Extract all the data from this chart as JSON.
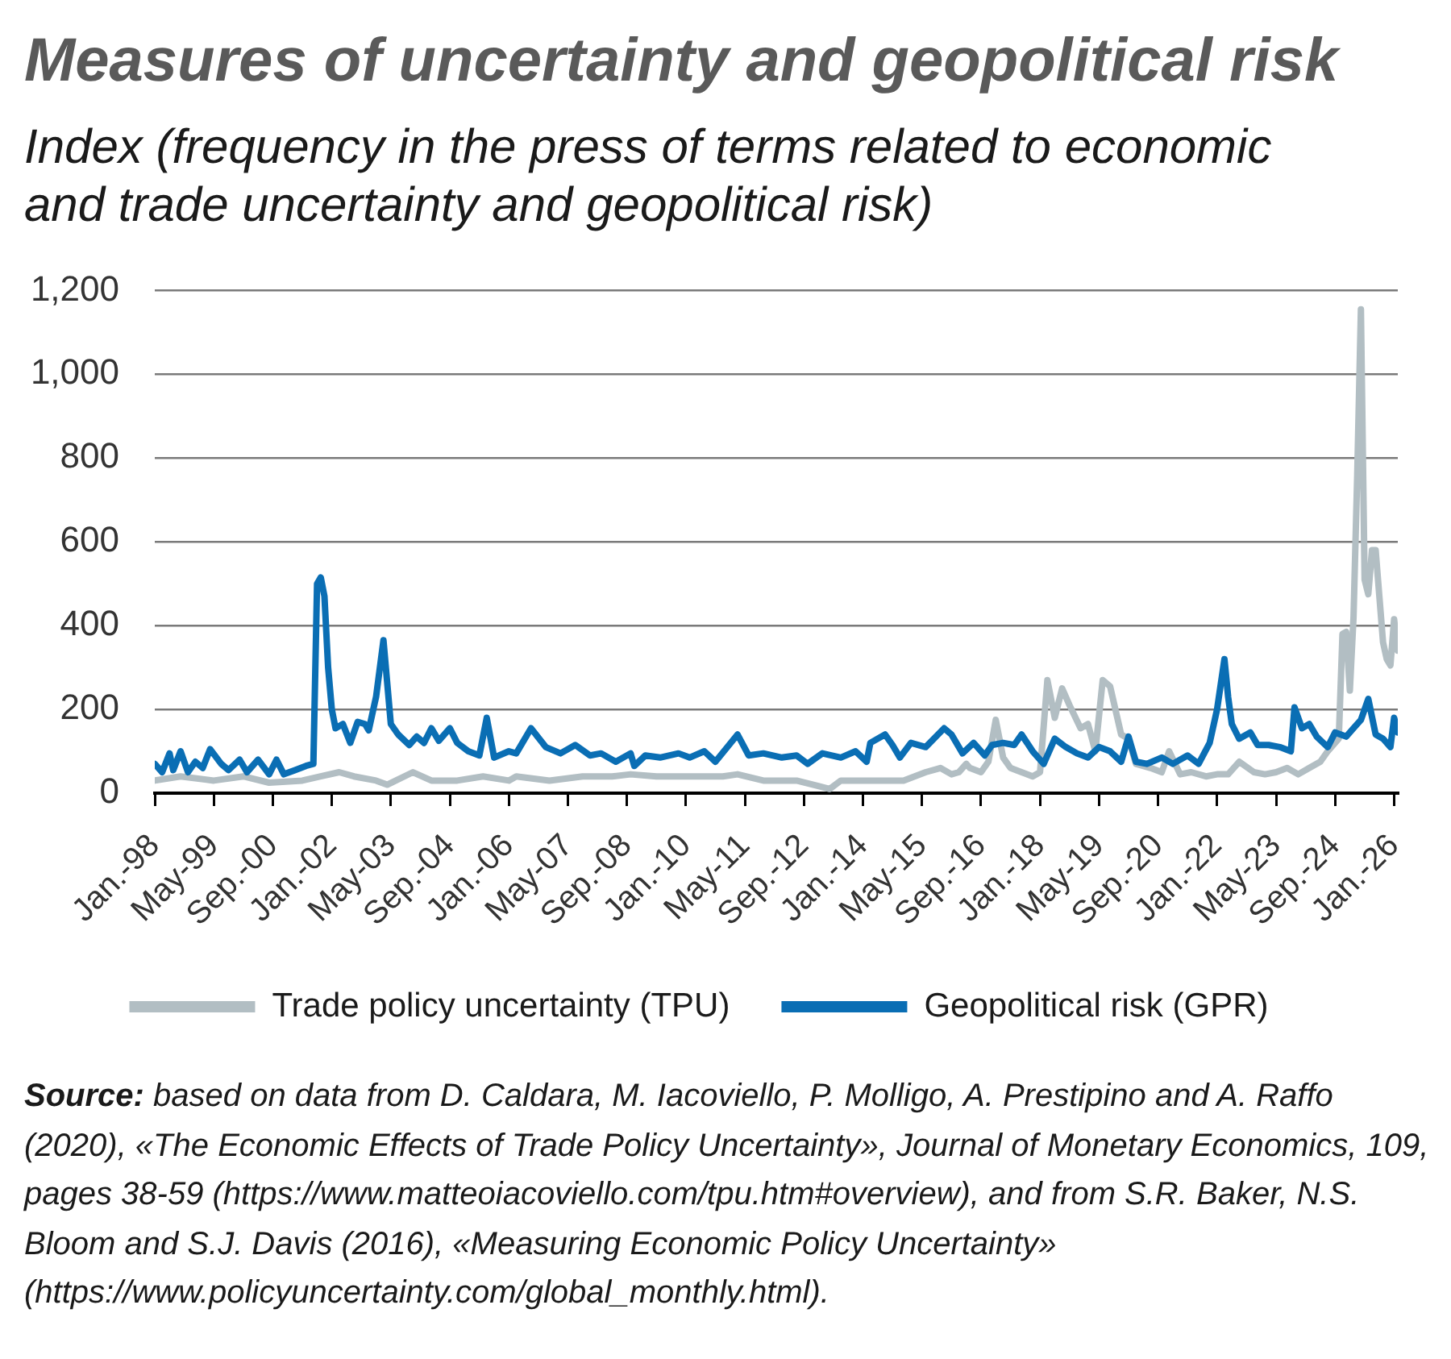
{
  "chart_data": {
    "type": "line",
    "title": "Measures of uncertainty and geopolitical risk",
    "subtitle": "Index (frequency in the press of terms related to economic and trade uncertainty and geopolitical risk)",
    "annotations": [
      "Source: based on data from D. Caldara, M. Iacoviello, P. Molligo, A. Prestipino and A. Raffo (2020), «The Economic Effects of Trade Policy Uncertainty», Journal of Monetary Economics, 109, pages 38-59 (https://www.matteoiacoviello.com/tpu.htm#overview), and from S.R. Baker, N.S. Bloom and S.J. Davis (2016), «Measuring Economic Policy Uncertainty» (https://www.policyuncertainty.com/global_monthly.html)."
    ],
    "xlim": [
      "1998-01",
      "2026-02"
    ],
    "xticks": [
      {
        "value": "1998-01",
        "label": "Jan.-98"
      },
      {
        "value": "1999-05",
        "label": "May-99"
      },
      {
        "value": "2000-09",
        "label": "Sep.-00"
      },
      {
        "value": "2002-01",
        "label": "Jan.-02"
      },
      {
        "value": "2003-05",
        "label": "May-03"
      },
      {
        "value": "2004-09",
        "label": "Sep.-04"
      },
      {
        "value": "2006-01",
        "label": "Jan.-06"
      },
      {
        "value": "2007-05",
        "label": "May-07"
      },
      {
        "value": "2008-09",
        "label": "Sep.-08"
      },
      {
        "value": "2010-01",
        "label": "Jan.-10"
      },
      {
        "value": "2011-05",
        "label": "May-11"
      },
      {
        "value": "2012-09",
        "label": "Sep.-12"
      },
      {
        "value": "2014-01",
        "label": "Jan.-14"
      },
      {
        "value": "2015-05",
        "label": "May-15"
      },
      {
        "value": "2016-09",
        "label": "Sep.-16"
      },
      {
        "value": "2018-01",
        "label": "Jan.-18"
      },
      {
        "value": "2019-05",
        "label": "May-19"
      },
      {
        "value": "2020-09",
        "label": "Sep.-20"
      },
      {
        "value": "2022-01",
        "label": "Jan.-22"
      },
      {
        "value": "2023-05",
        "label": "May-23"
      },
      {
        "value": "2024-09",
        "label": "Sep.-24"
      },
      {
        "value": "2026-01",
        "label": "Jan.-26"
      }
    ],
    "ylim": [
      0,
      1200
    ],
    "yticks": [
      0,
      200,
      400,
      600,
      800,
      {
        "value": 1000,
        "label": "1,000"
      },
      {
        "value": 1200,
        "label": "1,200"
      }
    ],
    "grid": "y",
    "legend": "bottom",
    "series": [
      {
        "name": "Trade policy uncertainty (TPU)",
        "color": "#b2bec3",
        "x": [
          "1998-01",
          "1998-08",
          "1999-05",
          "2000-01",
          "2000-08",
          "2001-05",
          "2001-10",
          "2002-03",
          "2002-07",
          "2003-01",
          "2003-04",
          "2003-11",
          "2004-04",
          "2004-11",
          "2005-06",
          "2006-01",
          "2006-03",
          "2006-12",
          "2007-09",
          "2008-05",
          "2008-10",
          "2009-05",
          "2010-02",
          "2010-11",
          "2011-03",
          "2011-10",
          "2012-07",
          "2013-04",
          "2013-07",
          "2014-03",
          "2014-12",
          "2015-06",
          "2015-10",
          "2016-01",
          "2016-03",
          "2016-05",
          "2016-06",
          "2016-09",
          "2016-11",
          "2017-01",
          "2017-03",
          "2017-05",
          "2017-08",
          "2017-11",
          "2018-01",
          "2018-03",
          "2018-05",
          "2018-07",
          "2018-09",
          "2018-12",
          "2019-02",
          "2019-04",
          "2019-06",
          "2019-08",
          "2019-11",
          "2020-01",
          "2020-03",
          "2020-07",
          "2020-10",
          "2020-12",
          "2021-03",
          "2021-06",
          "2021-10",
          "2022-01",
          "2022-04",
          "2022-07",
          "2022-11",
          "2023-02",
          "2023-05",
          "2023-08",
          "2023-11",
          "2024-02",
          "2024-05",
          "2024-07",
          "2024-09",
          "2024-10",
          "2024-11",
          "2024-12",
          "2025-01",
          "2025-02",
          "2025-03",
          "2025-04",
          "2025-05",
          "2025-06",
          "2025-07",
          "2025-08",
          "2025-09",
          "2025-10",
          "2025-11",
          "2025-12",
          "2026-01",
          "2026-02"
        ],
        "values": [
          30,
          40,
          30,
          40,
          25,
          30,
          40,
          50,
          40,
          30,
          20,
          50,
          30,
          30,
          40,
          30,
          40,
          30,
          40,
          40,
          45,
          40,
          40,
          40,
          45,
          30,
          30,
          10,
          30,
          30,
          30,
          50,
          60,
          45,
          50,
          70,
          60,
          50,
          75,
          175,
          85,
          60,
          50,
          40,
          50,
          270,
          180,
          250,
          210,
          155,
          165,
          100,
          270,
          255,
          140,
          130,
          70,
          60,
          50,
          100,
          45,
          50,
          40,
          45,
          45,
          75,
          50,
          45,
          50,
          60,
          45,
          60,
          75,
          100,
          120,
          130,
          380,
          385,
          245,
          420,
          760,
          1155,
          510,
          475,
          580,
          580,
          470,
          360,
          320,
          305,
          415,
          340
        ]
      },
      {
        "name": "Geopolitical risk (GPR)",
        "color": "#0a6eb4",
        "x": [
          "1998-01",
          "1998-03",
          "1998-05",
          "1998-06",
          "1998-08",
          "1998-10",
          "1998-12",
          "1999-02",
          "1999-04",
          "1999-07",
          "1999-09",
          "1999-12",
          "2000-02",
          "2000-05",
          "2000-08",
          "2000-10",
          "2000-12",
          "2001-03",
          "2001-06",
          "2001-08",
          "2001-09",
          "2001-10",
          "2001-11",
          "2001-12",
          "2002-01",
          "2002-02",
          "2002-04",
          "2002-06",
          "2002-08",
          "2002-10",
          "2002-11",
          "2003-01",
          "2003-03",
          "2003-05",
          "2003-07",
          "2003-10",
          "2003-12",
          "2004-02",
          "2004-04",
          "2004-06",
          "2004-09",
          "2004-11",
          "2005-02",
          "2005-05",
          "2005-07",
          "2005-09",
          "2006-01",
          "2006-03",
          "2006-07",
          "2006-11",
          "2007-03",
          "2007-07",
          "2007-11",
          "2008-02",
          "2008-06",
          "2008-10",
          "2008-11",
          "2009-02",
          "2009-06",
          "2009-11",
          "2010-02",
          "2010-06",
          "2010-09",
          "2011-03",
          "2011-06",
          "2011-10",
          "2012-03",
          "2012-07",
          "2012-10",
          "2013-02",
          "2013-07",
          "2013-11",
          "2014-02",
          "2014-03",
          "2014-07",
          "2014-09",
          "2014-11",
          "2015-02",
          "2015-06",
          "2015-11",
          "2016-01",
          "2016-04",
          "2016-07",
          "2016-10",
          "2016-12",
          "2017-03",
          "2017-06",
          "2017-08",
          "2017-11",
          "2018-02",
          "2018-05",
          "2018-08",
          "2018-11",
          "2019-02",
          "2019-05",
          "2019-08",
          "2019-11",
          "2020-01",
          "2020-03",
          "2020-06",
          "2020-10",
          "2021-01",
          "2021-05",
          "2021-08",
          "2021-11",
          "2022-01",
          "2022-03",
          "2022-04",
          "2022-05",
          "2022-07",
          "2022-10",
          "2022-12",
          "2023-03",
          "2023-06",
          "2023-09",
          "2023-10",
          "2023-12",
          "2024-02",
          "2024-04",
          "2024-07",
          "2024-09",
          "2024-12",
          "2025-02",
          "2025-04",
          "2025-06",
          "2025-08",
          "2025-10",
          "2025-12",
          "2026-01",
          "2026-02"
        ],
        "values": [
          70,
          50,
          95,
          55,
          100,
          50,
          75,
          60,
          105,
          70,
          55,
          80,
          50,
          80,
          45,
          80,
          45,
          55,
          65,
          70,
          500,
          515,
          470,
          300,
          200,
          155,
          165,
          120,
          170,
          165,
          150,
          230,
          365,
          165,
          140,
          115,
          135,
          120,
          155,
          125,
          155,
          120,
          100,
          90,
          180,
          85,
          100,
          95,
          155,
          110,
          95,
          115,
          90,
          95,
          75,
          95,
          65,
          90,
          85,
          95,
          85,
          100,
          75,
          140,
          90,
          95,
          85,
          90,
          70,
          95,
          85,
          100,
          75,
          120,
          140,
          115,
          85,
          120,
          110,
          155,
          140,
          95,
          120,
          90,
          115,
          120,
          115,
          140,
          100,
          70,
          130,
          110,
          95,
          85,
          110,
          100,
          75,
          135,
          75,
          70,
          85,
          70,
          90,
          70,
          120,
          200,
          320,
          230,
          165,
          130,
          145,
          115,
          115,
          110,
          100,
          205,
          155,
          165,
          135,
          110,
          145,
          135,
          155,
          175,
          225,
          140,
          130,
          110,
          180,
          145
        ]
      }
    ]
  }
}
